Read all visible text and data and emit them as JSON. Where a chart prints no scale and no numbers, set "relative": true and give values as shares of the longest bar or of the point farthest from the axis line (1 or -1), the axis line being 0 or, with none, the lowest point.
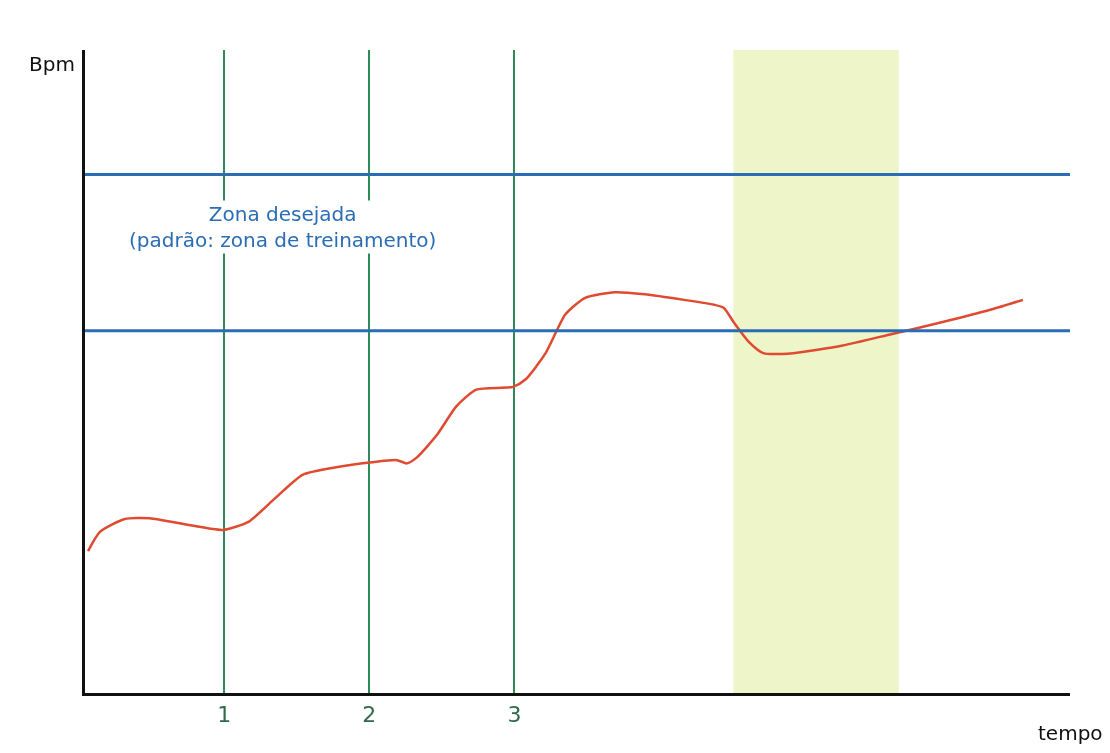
{
  "chart_data": {
    "type": "line",
    "xlabel": "tempo",
    "relative": true,
    "xlim": [
      0.04,
      6.83
    ],
    "xticks": [
      1,
      2,
      3
    ],
    "grid": "x",
    "color": "#e04a30",
    "line_style": "solid",
    "x": [
      0.061,
      0.143,
      0.314,
      0.485,
      0.758,
      0.99,
      1.167,
      1.338,
      1.543,
      1.782,
      2.02,
      2.191,
      2.259,
      2.328,
      2.464,
      2.601,
      2.737,
      2.99,
      3.078,
      3.215,
      3.352,
      3.488,
      3.693,
      3.898,
      4.171,
      4.375,
      4.444,
      4.512,
      4.614,
      4.717,
      4.922,
      5.263,
      5.604,
      5.945,
      6.287,
      6.505
    ],
    "values": [
      0.354,
      0.402,
      0.434,
      0.436,
      0.419,
      0.407,
      0.427,
      0.482,
      0.545,
      0.564,
      0.576,
      0.581,
      0.573,
      0.588,
      0.643,
      0.716,
      0.757,
      0.764,
      0.783,
      0.848,
      0.945,
      0.986,
      1,
      0.995,
      0.981,
      0.969,
      0.961,
      0.925,
      0.877,
      0.848,
      0.848,
      0.867,
      0.896,
      0.925,
      0.957,
      0.981
    ],
    "ref_lines": [
      {
        "axis": "y",
        "value": 1.294,
        "color": "#2a6db5"
      },
      {
        "axis": "y",
        "value": 0.904,
        "color": "#2a6db5"
      }
    ],
    "bands": [
      {
        "axis": "x",
        "from": 4.51,
        "to": 5.65,
        "color": "#eef5c8"
      }
    ],
    "annotations": [
      "Zona desejada\n(padrão: zona de treinamento)",
      "Bpm"
    ]
  }
}
